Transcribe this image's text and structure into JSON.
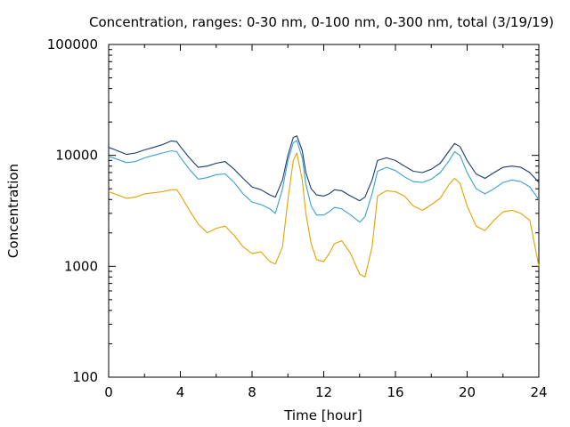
{
  "chart_data": {
    "type": "line",
    "title": "Concentration, ranges: 0-30 nm, 0-100 nm, 0-300 nm, total (3/19/19)",
    "xlabel": "Time [hour]",
    "ylabel": "Concentration",
    "xlim": [
      0,
      24
    ],
    "ylim": [
      100,
      100000
    ],
    "yscale": "log",
    "grid": false,
    "legend": "none",
    "x_ticks": [
      0,
      4,
      8,
      12,
      16,
      20,
      24
    ],
    "x_tick_labels": [
      "0",
      "4",
      "8",
      "12",
      "16",
      "20",
      "24"
    ],
    "y_ticks": [
      100,
      1000,
      10000,
      100000
    ],
    "y_tick_labels": [
      "100",
      "1000",
      "10000",
      "100000"
    ],
    "x": [
      0,
      0.5,
      1,
      1.5,
      2,
      2.5,
      3,
      3.5,
      3.8,
      4,
      4.5,
      5,
      5.5,
      6,
      6.5,
      7,
      7.5,
      8,
      8.5,
      9,
      9.3,
      9.7,
      10,
      10.3,
      10.5,
      10.8,
      11,
      11.3,
      11.6,
      12,
      12.3,
      12.6,
      13,
      13.5,
      14,
      14.3,
      14.7,
      15,
      15.5,
      16,
      16.5,
      17,
      17.5,
      18,
      18.5,
      19,
      19.3,
      19.6,
      20,
      20.5,
      21,
      21.5,
      22,
      22.5,
      23,
      23.5,
      24
    ],
    "series": [
      {
        "color": "#1a3a6e",
        "values": [
          11800,
          11000,
          10200,
          10500,
          11200,
          11800,
          12500,
          13500,
          13300,
          12000,
          9500,
          7800,
          8000,
          8500,
          8800,
          7500,
          6200,
          5200,
          4900,
          4400,
          4200,
          6000,
          10000,
          14500,
          15000,
          11000,
          7000,
          5000,
          4400,
          4300,
          4500,
          4900,
          4800,
          4300,
          3900,
          4200,
          6000,
          9000,
          9500,
          9000,
          8000,
          7200,
          7000,
          7500,
          8500,
          11000,
          12800,
          12000,
          9000,
          6800,
          6200,
          7000,
          7800,
          8000,
          7800,
          7000,
          5700
        ]
      },
      {
        "color": "#3aa0d4",
        "values": [
          9800,
          9200,
          8600,
          8800,
          9500,
          10000,
          10500,
          11000,
          10800,
          9600,
          7500,
          6100,
          6300,
          6700,
          6800,
          5700,
          4500,
          3800,
          3600,
          3300,
          3000,
          5000,
          9000,
          13000,
          13600,
          9500,
          5500,
          3500,
          2900,
          2900,
          3100,
          3400,
          3300,
          2900,
          2500,
          2800,
          4500,
          7200,
          7800,
          7300,
          6400,
          5800,
          5700,
          6100,
          7000,
          9000,
          10800,
          10000,
          7000,
          5000,
          4500,
          5000,
          5700,
          6000,
          5800,
          5200,
          4000
        ]
      },
      {
        "color": "#e6a100",
        "values": [
          4700,
          4400,
          4100,
          4200,
          4500,
          4600,
          4700,
          4900,
          4900,
          4400,
          3200,
          2400,
          2000,
          2200,
          2300,
          1900,
          1500,
          1300,
          1350,
          1100,
          1050,
          1500,
          4000,
          9000,
          10500,
          6000,
          3000,
          1600,
          1150,
          1100,
          1300,
          1600,
          1700,
          1300,
          850,
          800,
          1500,
          4300,
          4800,
          4700,
          4300,
          3500,
          3200,
          3600,
          4100,
          5500,
          6200,
          5600,
          3500,
          2300,
          2100,
          2600,
          3100,
          3200,
          3000,
          2600,
          1000
        ]
      }
    ]
  }
}
